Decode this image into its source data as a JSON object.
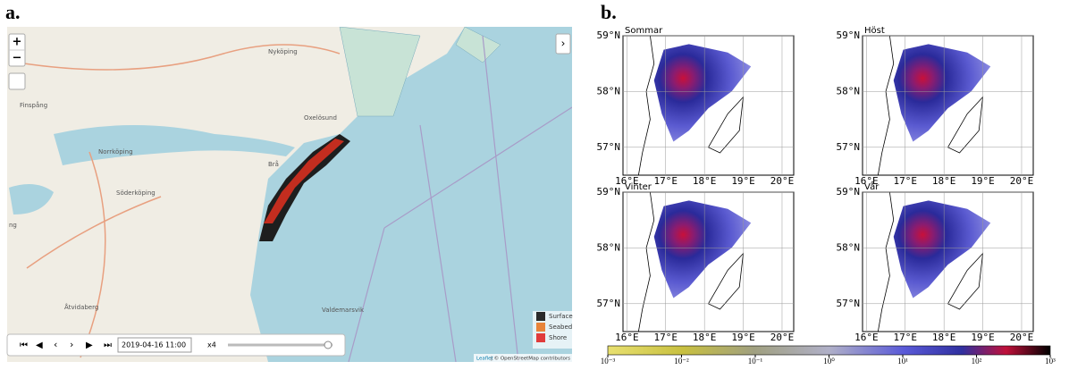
{
  "panel_a": {
    "label": "a.",
    "zoom_in": "+",
    "zoom_out": "−",
    "places": [
      "Nyköping",
      "Oxelösund",
      "Finspång",
      "Norrköping",
      "Söderköping",
      "Valdemarsvik",
      "Åtvidaberg",
      "Brå",
      "ng"
    ],
    "legend": [
      {
        "name": "Surface",
        "color": "#2a2a2a"
      },
      {
        "name": "Seabed",
        "color": "#e8843a"
      },
      {
        "name": "Shore",
        "color": "#e03b3b"
      }
    ],
    "timestamp": "2019-04-16 11:00",
    "speed": "x4",
    "attribution_link": "Leaflet",
    "attribution": "| © OpenStreetMap contributors"
  },
  "panel_b": {
    "label": "b.",
    "maps": [
      {
        "title": "Sommar"
      },
      {
        "title": "Höst"
      },
      {
        "title": "Vinter"
      },
      {
        "title": "Vår"
      }
    ],
    "xlim": [
      15.9,
      20.3
    ],
    "ylim": [
      56.5,
      59
    ],
    "xticks": [
      {
        "value": 16,
        "label": "16°E"
      },
      {
        "value": 17,
        "label": "17°E"
      },
      {
        "value": 18,
        "label": "18°E"
      },
      {
        "value": 19,
        "label": "19°E"
      },
      {
        "value": 20,
        "label": "20°E"
      }
    ],
    "yticks": [
      {
        "value": 57,
        "label": "57°N"
      },
      {
        "value": 58,
        "label": "58°N"
      },
      {
        "value": 59,
        "label": "59°N"
      }
    ],
    "colorbar": {
      "log_scale": true,
      "lim": [
        0.001,
        1000
      ],
      "ticks": [
        {
          "value": 0.001,
          "label": "10⁻³"
        },
        {
          "value": 0.01,
          "label": "10⁻²"
        },
        {
          "value": 0.1,
          "label": "10⁻¹"
        },
        {
          "value": 1,
          "label": "10⁰"
        },
        {
          "value": 10,
          "label": "10¹"
        },
        {
          "value": 100,
          "label": "10²"
        },
        {
          "value": 1000,
          "label": "10³"
        }
      ]
    }
  }
}
